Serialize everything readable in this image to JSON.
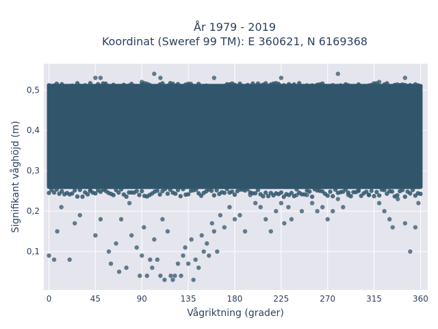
{
  "chart_data": {
    "type": "scatter",
    "title_line1": "År 1979 - 2019",
    "title_line2": "Koordinat (Sweref 99 TM): E 360621, N 6169368",
    "xlabel": "Vågriktning (grader)",
    "ylabel": "Signifikant våghöjd (m)",
    "xlim": [
      -5,
      367
    ],
    "ylim": [
      0.005,
      0.565
    ],
    "x_ticks": [
      0,
      45,
      90,
      135,
      180,
      225,
      270,
      315,
      360
    ],
    "x_tick_labels": [
      "0",
      "45",
      "90",
      "135",
      "180",
      "225",
      "270",
      "315",
      "360"
    ],
    "y_ticks": [
      0.1,
      0.2,
      0.3,
      0.4,
      0.5
    ],
    "y_tick_labels": [
      "0,1",
      "0,2",
      "0,3",
      "0,4",
      "0,5"
    ],
    "grid": true,
    "legend": "none",
    "dense_band": {
      "x": [
        0,
        360
      ],
      "y": [
        0.26,
        0.51
      ]
    },
    "series": [
      {
        "values": [
          [
            0,
            0.09
          ],
          [
            5,
            0.08
          ],
          [
            20,
            0.08
          ],
          [
            8,
            0.15
          ],
          [
            12,
            0.21
          ],
          [
            25,
            0.17
          ],
          [
            30,
            0.19
          ],
          [
            40,
            0.25
          ],
          [
            45,
            0.14
          ],
          [
            50,
            0.18
          ],
          [
            58,
            0.1
          ],
          [
            60,
            0.07
          ],
          [
            65,
            0.12
          ],
          [
            68,
            0.05
          ],
          [
            70,
            0.18
          ],
          [
            75,
            0.06
          ],
          [
            78,
            0.22
          ],
          [
            80,
            0.14
          ],
          [
            85,
            0.11
          ],
          [
            88,
            0.04
          ],
          [
            90,
            0.09
          ],
          [
            92,
            0.16
          ],
          [
            95,
            0.04
          ],
          [
            98,
            0.08
          ],
          [
            100,
            0.06
          ],
          [
            102,
            0.13
          ],
          [
            105,
            0.08
          ],
          [
            108,
            0.04
          ],
          [
            110,
            0.18
          ],
          [
            112,
            0.03
          ],
          [
            115,
            0.15
          ],
          [
            118,
            0.04
          ],
          [
            120,
            0.03
          ],
          [
            122,
            0.04
          ],
          [
            125,
            0.07
          ],
          [
            128,
            0.04
          ],
          [
            130,
            0.09
          ],
          [
            132,
            0.11
          ],
          [
            135,
            0.07
          ],
          [
            138,
            0.13
          ],
          [
            140,
            0.03
          ],
          [
            142,
            0.08
          ],
          [
            145,
            0.06
          ],
          [
            148,
            0.14
          ],
          [
            150,
            0.1
          ],
          [
            153,
            0.12
          ],
          [
            155,
            0.09
          ],
          [
            158,
            0.17
          ],
          [
            160,
            0.15
          ],
          [
            163,
            0.1
          ],
          [
            166,
            0.19
          ],
          [
            170,
            0.16
          ],
          [
            175,
            0.21
          ],
          [
            180,
            0.18
          ],
          [
            185,
            0.19
          ],
          [
            190,
            0.15
          ],
          [
            195,
            0.24
          ],
          [
            200,
            0.22
          ],
          [
            205,
            0.21
          ],
          [
            210,
            0.18
          ],
          [
            215,
            0.15
          ],
          [
            220,
            0.2
          ],
          [
            225,
            0.22
          ],
          [
            228,
            0.17
          ],
          [
            232,
            0.21
          ],
          [
            235,
            0.18
          ],
          [
            240,
            0.24
          ],
          [
            245,
            0.2
          ],
          [
            250,
            0.24
          ],
          [
            255,
            0.22
          ],
          [
            260,
            0.2
          ],
          [
            265,
            0.21
          ],
          [
            270,
            0.18
          ],
          [
            275,
            0.2
          ],
          [
            280,
            0.23
          ],
          [
            285,
            0.21
          ],
          [
            290,
            0.24
          ],
          [
            300,
            0.25
          ],
          [
            310,
            0.24
          ],
          [
            320,
            0.22
          ],
          [
            325,
            0.2
          ],
          [
            330,
            0.18
          ],
          [
            333,
            0.16
          ],
          [
            338,
            0.23
          ],
          [
            345,
            0.17
          ],
          [
            350,
            0.1
          ],
          [
            355,
            0.16
          ],
          [
            358,
            0.22
          ],
          [
            102,
            0.54
          ],
          [
            108,
            0.53
          ],
          [
            90,
            0.52
          ],
          [
            45,
            0.53
          ],
          [
            50,
            0.53
          ],
          [
            160,
            0.53
          ],
          [
            225,
            0.53
          ],
          [
            280,
            0.54
          ],
          [
            345,
            0.53
          ],
          [
            320,
            0.52
          ]
        ]
      }
    ],
    "marker_color": "#31566b",
    "plot_background": "#e5e5ee",
    "grid_color": "#ffffff"
  }
}
